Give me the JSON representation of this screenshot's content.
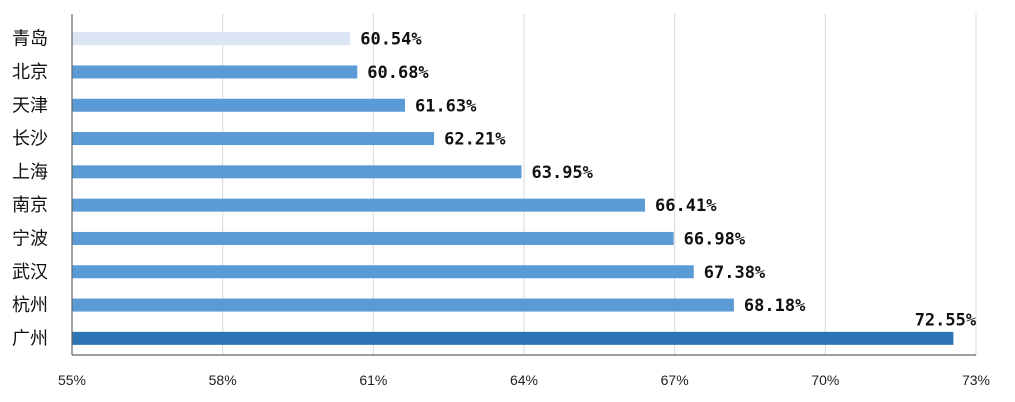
{
  "chart_data": {
    "type": "bar",
    "orientation": "horizontal",
    "categories": [
      "青岛",
      "北京",
      "天津",
      "长沙",
      "上海",
      "南京",
      "宁波",
      "武汉",
      "杭州",
      "广州"
    ],
    "values": [
      60.54,
      60.68,
      61.63,
      62.21,
      63.95,
      66.41,
      66.98,
      67.38,
      68.18,
      72.55
    ],
    "value_labels": [
      "60.54%",
      "60.68%",
      "61.63%",
      "62.21%",
      "63.95%",
      "66.41%",
      "66.98%",
      "67.38%",
      "68.18%",
      "72.55%"
    ],
    "bar_colors": [
      "#dbe5f4",
      "#5b9bd5",
      "#5b9bd5",
      "#5b9bd5",
      "#5b9bd5",
      "#5b9bd5",
      "#5b9bd5",
      "#5b9bd5",
      "#5b9bd5",
      "#2e75b6"
    ],
    "xlim": [
      55,
      73
    ],
    "x_ticks": [
      55,
      58,
      61,
      64,
      67,
      70,
      73
    ],
    "x_tick_labels": [
      "55%",
      "58%",
      "61%",
      "64%",
      "67%",
      "70%",
      "73%"
    ],
    "grid": "vertical",
    "legend": "none",
    "title": "",
    "xlabel": "",
    "ylabel": ""
  }
}
